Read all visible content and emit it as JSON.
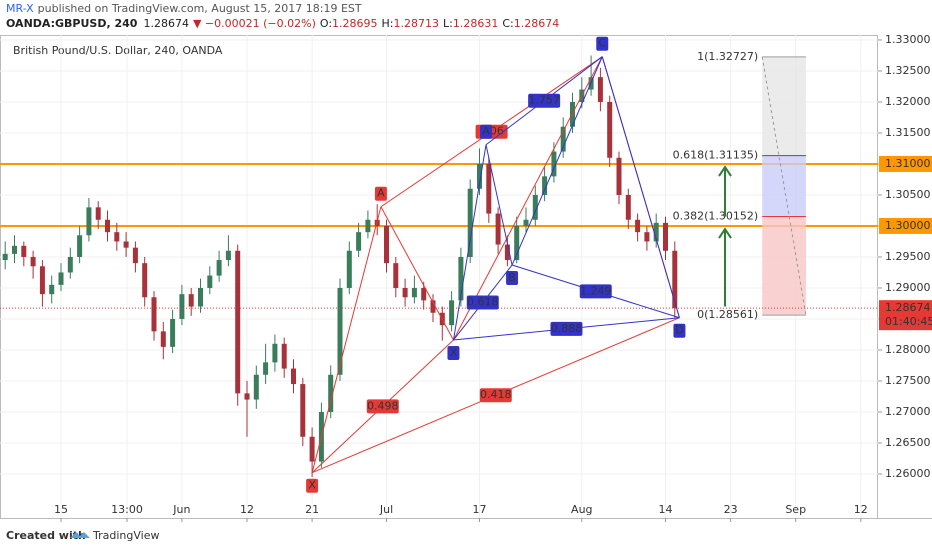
{
  "header": {
    "author": "MR-X",
    "published": "published on TradingView.com, August 15, 2017 18:19 EST",
    "symbol": "OANDA:GBPUSD, 240",
    "last": "1.28674",
    "change": "▼ −0.00021 (−0.02%)",
    "ohlc": [
      {
        "label": "O:",
        "value": "1.28695"
      },
      {
        "label": "H:",
        "value": "1.28713"
      },
      {
        "label": "L:",
        "value": "1.28631"
      },
      {
        "label": "C:",
        "value": "1.28674"
      }
    ]
  },
  "chart_data": {
    "type": "candlestick",
    "title": "British Pound/U.S. Dollar, 240, OANDA",
    "up_color": "#3a7d5c",
    "down_color": "#a8323a",
    "x": [
      -6,
      -5,
      -4,
      -3,
      -2,
      -1,
      0,
      1,
      2,
      3,
      4,
      5,
      6,
      7,
      8,
      9,
      10,
      11,
      12,
      13,
      14,
      15,
      16,
      17,
      18,
      19,
      20,
      21,
      22,
      23,
      24,
      25,
      26,
      27,
      28,
      29,
      30,
      31,
      32,
      33,
      34,
      35,
      36,
      37,
      38,
      39,
      40,
      41,
      42,
      43,
      44,
      45,
      46,
      47,
      48,
      49,
      50,
      51,
      52,
      53,
      54,
      55,
      56,
      57,
      58,
      59,
      60,
      61,
      62,
      63,
      64,
      65,
      66
    ],
    "open": [
      1.2945,
      1.2955,
      1.2968,
      1.295,
      1.2935,
      1.289,
      1.2905,
      1.2925,
      1.295,
      1.2985,
      1.303,
      1.301,
      1.299,
      1.2975,
      1.2965,
      1.294,
      1.2885,
      1.283,
      1.2805,
      1.285,
      1.289,
      1.287,
      1.29,
      1.292,
      1.2945,
      1.296,
      1.273,
      1.272,
      1.276,
      1.278,
      1.281,
      1.277,
      1.2745,
      1.266,
      1.262,
      1.27,
      1.276,
      1.29,
      1.296,
      1.299,
      1.301,
      1.3,
      1.294,
      1.29,
      1.2885,
      1.29,
      1.288,
      1.286,
      1.284,
      1.288,
      1.295,
      1.306,
      1.31,
      1.302,
      1.297,
      1.2945,
      1.3,
      1.301,
      1.305,
      1.308,
      1.312,
      1.316,
      1.32,
      1.322,
      1.324,
      1.32,
      1.311,
      1.305,
      1.301,
      1.299,
      1.2975,
      1.3005,
      1.296
    ],
    "high": [
      1.2975,
      1.2985,
      1.2975,
      1.296,
      1.2945,
      1.292,
      1.294,
      1.2965,
      1.3,
      1.3045,
      1.304,
      1.3025,
      1.3005,
      1.299,
      1.2975,
      1.295,
      1.2895,
      1.2845,
      1.2865,
      1.2905,
      1.29,
      1.2915,
      1.2935,
      1.296,
      1.2985,
      1.297,
      1.275,
      1.2775,
      1.281,
      1.2825,
      1.282,
      1.2785,
      1.2755,
      1.2675,
      1.2715,
      1.2775,
      1.2915,
      1.2975,
      1.3005,
      1.3025,
      1.3035,
      1.301,
      1.295,
      1.2915,
      1.292,
      1.291,
      1.289,
      1.287,
      1.2895,
      1.2965,
      1.3075,
      1.3125,
      1.311,
      1.303,
      1.2985,
      1.3015,
      1.303,
      1.3065,
      1.3095,
      1.3135,
      1.3175,
      1.3215,
      1.324,
      1.3275,
      1.3255,
      1.321,
      1.312,
      1.306,
      1.302,
      1.3,
      1.302,
      1.3015,
      1.2975
    ],
    "low": [
      1.293,
      1.294,
      1.2935,
      1.2915,
      1.287,
      1.2875,
      1.2895,
      1.2915,
      1.294,
      1.2975,
      1.2995,
      1.2975,
      1.296,
      1.295,
      1.2925,
      1.287,
      1.2815,
      1.2785,
      1.2795,
      1.284,
      1.2855,
      1.286,
      1.289,
      1.291,
      1.2935,
      1.271,
      1.266,
      1.2705,
      1.2745,
      1.2765,
      1.2755,
      1.273,
      1.2645,
      1.2595,
      1.261,
      1.269,
      1.275,
      1.289,
      1.295,
      1.298,
      1.2985,
      1.2925,
      1.2885,
      1.287,
      1.2875,
      1.2865,
      1.2845,
      1.2815,
      1.283,
      1.287,
      1.294,
      1.305,
      1.3005,
      1.2955,
      1.2935,
      1.294,
      1.299,
      1.3,
      1.304,
      1.307,
      1.311,
      1.315,
      1.319,
      1.321,
      1.3185,
      1.3095,
      1.3035,
      1.2995,
      1.2975,
      1.296,
      1.2965,
      1.2945,
      1.2852
    ],
    "close": [
      1.2955,
      1.2968,
      1.295,
      1.2935,
      1.289,
      1.2905,
      1.2925,
      1.295,
      1.2985,
      1.303,
      1.301,
      1.299,
      1.2975,
      1.2965,
      1.294,
      1.2885,
      1.283,
      1.2805,
      1.285,
      1.289,
      1.287,
      1.29,
      1.292,
      1.2945,
      1.296,
      1.273,
      1.272,
      1.276,
      1.278,
      1.281,
      1.277,
      1.2745,
      1.266,
      1.262,
      1.27,
      1.276,
      1.29,
      1.296,
      1.299,
      1.301,
      1.3,
      1.294,
      1.29,
      1.2885,
      1.29,
      1.288,
      1.286,
      1.284,
      1.288,
      1.295,
      1.306,
      1.31,
      1.302,
      1.297,
      1.2945,
      1.3,
      1.301,
      1.305,
      1.308,
      1.312,
      1.316,
      1.32,
      1.322,
      1.324,
      1.32,
      1.311,
      1.305,
      1.301,
      1.299,
      1.2975,
      1.3005,
      1.296,
      1.28674
    ],
    "xlim": [
      -6.56,
      87.85
    ],
    "ylim": [
      1.2558,
      1.3308
    ],
    "xticks": [
      {
        "value": 0,
        "label": "15"
      },
      {
        "value": 7.1,
        "label": "13:00"
      },
      {
        "value": 13,
        "label": "Jun"
      },
      {
        "value": 20,
        "label": "12"
      },
      {
        "value": 27,
        "label": "21"
      },
      {
        "value": 35,
        "label": "Jul"
      },
      {
        "value": 45,
        "label": "17"
      },
      {
        "value": 56,
        "label": "Aug"
      },
      {
        "value": 65,
        "label": "14"
      },
      {
        "value": 72,
        "label": "23"
      },
      {
        "value": 79,
        "label": "Sep"
      },
      {
        "value": 86,
        "label": "12"
      }
    ],
    "yticks": [
      {
        "value": 1.33,
        "label": "1.33000"
      },
      {
        "value": 1.325,
        "label": "1.32500"
      },
      {
        "value": 1.32,
        "label": "1.32000"
      },
      {
        "value": 1.315,
        "label": "1.31500"
      },
      {
        "value": 1.31,
        "label": "1.31000"
      },
      {
        "value": 1.305,
        "label": "1.30500"
      },
      {
        "value": 1.3,
        "label": "1.30000"
      },
      {
        "value": 1.295,
        "label": "1.29500"
      },
      {
        "value": 1.29,
        "label": "1.29000"
      },
      {
        "value": 1.285,
        "label": "1.28500"
      },
      {
        "value": 1.28,
        "label": "1.28000"
      },
      {
        "value": 1.275,
        "label": "1.27500"
      },
      {
        "value": 1.27,
        "label": "1.27000"
      },
      {
        "value": 1.265,
        "label": "1.26500"
      },
      {
        "value": 1.26,
        "label": "1.26000"
      }
    ],
    "grid": true,
    "levels": [
      {
        "value": 1.31,
        "color": "#ff9800"
      },
      {
        "value": 1.3,
        "color": "#ff9800"
      }
    ],
    "last_price": {
      "value": 1.28674,
      "label": "1.28674",
      "countdown": "01:40:45",
      "color": "#e53935"
    },
    "patterns": [
      {
        "color": "#e53935",
        "points": [
          {
            "label": "X",
            "x": 27,
            "y": 1.2602
          },
          {
            "label": "A",
            "x": 34.4,
            "y": 1.3031
          },
          {
            "label": null,
            "x": 42.2,
            "y": 1.2816
          },
          {
            "label": null,
            "x": 58.2,
            "y": 1.3273
          },
          {
            "label": null,
            "x": 66.5,
            "y": 1.2852
          }
        ],
        "legs": [
          [
            0,
            1
          ],
          [
            1,
            2
          ],
          [
            2,
            3
          ],
          [
            3,
            4
          ],
          [
            0,
            2
          ],
          [
            1,
            3
          ],
          [
            0,
            4
          ]
        ],
        "ratios": [
          {
            "value": 0.498,
            "leg": [
              0,
              2
            ]
          },
          {
            "value": 2.06,
            "leg": [
              1,
              3
            ]
          },
          {
            "value": 0.418,
            "leg": [
              0,
              4
            ]
          }
        ]
      },
      {
        "color": "#3333cc",
        "points": [
          {
            "label": "X",
            "x": 42.2,
            "y": 1.2816
          },
          {
            "label": "A",
            "x": 45.7,
            "y": 1.3131
          },
          {
            "label": "B",
            "x": 48.5,
            "y": 1.2937
          },
          {
            "label": "C",
            "x": 58.2,
            "y": 1.3273
          },
          {
            "label": "D",
            "x": 66.5,
            "y": 1.2852
          }
        ],
        "legs": [
          [
            0,
            1
          ],
          [
            1,
            2
          ],
          [
            2,
            3
          ],
          [
            3,
            4
          ],
          [
            0,
            2
          ],
          [
            1,
            3
          ],
          [
            2,
            4
          ],
          [
            0,
            4
          ]
        ],
        "ratios": [
          {
            "value": 1.757,
            "leg": [
              1,
              3
            ]
          },
          {
            "value": 0.618,
            "leg": [
              0,
              2
            ]
          },
          {
            "value": 1.249,
            "leg": [
              2,
              4
            ]
          },
          {
            "value": 0.888,
            "leg": [
              0,
              4
            ]
          }
        ]
      }
    ],
    "fib": {
      "x": [
        75.4,
        80.1
      ],
      "levels": [
        {
          "ratio": 1,
          "value": 1.32727,
          "label": "1(1.32727)",
          "color": "#9e9e9e",
          "fill": "#e6e6e6"
        },
        {
          "ratio": 0.618,
          "value": 1.31135,
          "label": "0.618(1.31135)",
          "color": "#3f51b5",
          "fill": "#c9cdf7"
        },
        {
          "ratio": 0.382,
          "value": 1.30152,
          "label": "0.382(1.30152)",
          "color": "#e53935",
          "fill": "#f9c6c6"
        },
        {
          "ratio": 0,
          "value": 1.28561,
          "label": "0(1.28561)",
          "color": "#9e9e9e",
          "fill": null
        }
      ]
    },
    "arrows": [
      {
        "x": 71.4,
        "from": 1.287,
        "to": 1.2995
      },
      {
        "x": 71.4,
        "from": 1.3015,
        "to": 1.3095
      }
    ],
    "arrow_color": "#2e7d32"
  },
  "footer": {
    "created": "Created with",
    "brand": "TradingView"
  }
}
